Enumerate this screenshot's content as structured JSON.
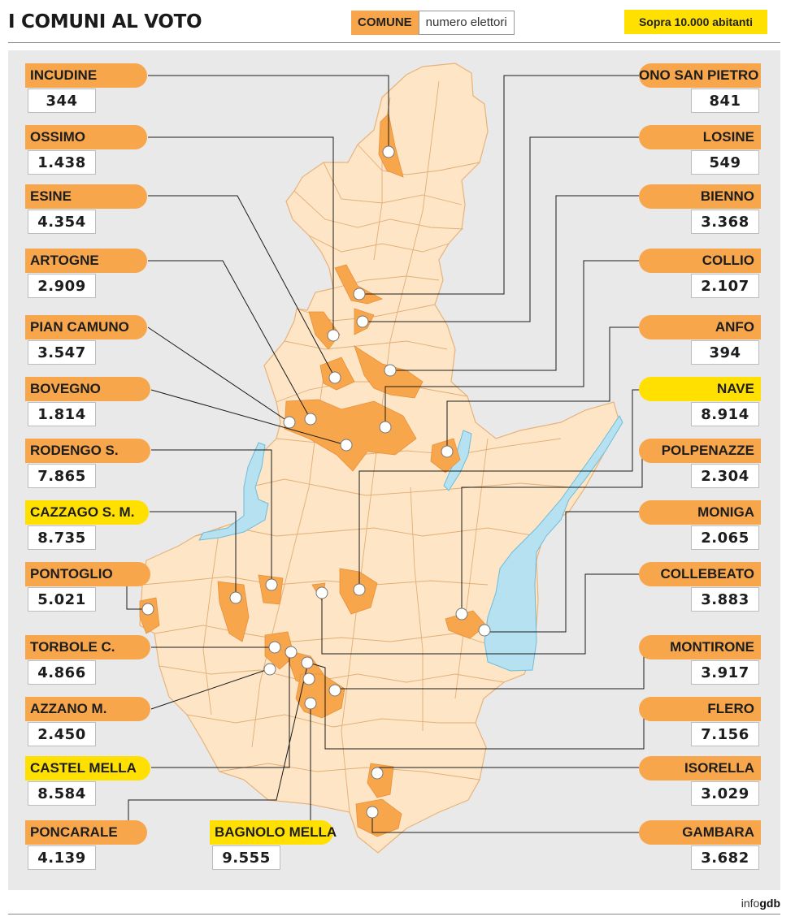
{
  "title": "I COMUNI AL VOTO",
  "legend": {
    "comune": "COMUNE",
    "elettori": "numero elettori",
    "sopra": "Sopra 10.000 abitanti"
  },
  "credit": {
    "pre": "info",
    "brand": "gdb"
  },
  "colors": {
    "orange": "#f8a64b",
    "yellow": "#ffe000",
    "province": "#fde5c6",
    "lake": "#b5e1f1"
  },
  "left": [
    {
      "name": "INCUDINE",
      "value": "344",
      "hl": false
    },
    {
      "name": "OSSIMO",
      "value": "1.438",
      "hl": false
    },
    {
      "name": "ESINE",
      "value": "4.354",
      "hl": false
    },
    {
      "name": "ARTOGNE",
      "value": "2.909",
      "hl": false
    },
    {
      "name": "PIAN CAMUNO",
      "value": "3.547",
      "hl": false
    },
    {
      "name": "BOVEGNO",
      "value": "1.814",
      "hl": false
    },
    {
      "name": "RODENGO S.",
      "value": "7.865",
      "hl": false
    },
    {
      "name": "CAZZAGO S. M.",
      "value": "8.735",
      "hl": true
    },
    {
      "name": "PONTOGLIO",
      "value": "5.021",
      "hl": false
    },
    {
      "name": "TORBOLE C.",
      "value": "4.866",
      "hl": false
    },
    {
      "name": "AZZANO M.",
      "value": "2.450",
      "hl": false
    },
    {
      "name": "CASTEL MELLA",
      "value": "8.584",
      "hl": true
    },
    {
      "name": "PONCARALE",
      "value": "4.139",
      "hl": false
    }
  ],
  "bottom": {
    "name": "BAGNOLO MELLA",
    "value": "9.555",
    "hl": true
  },
  "right": [
    {
      "name": "ONO SAN PIETRO",
      "value": "841",
      "hl": false
    },
    {
      "name": "LOSINE",
      "value": "549",
      "hl": false
    },
    {
      "name": "BIENNO",
      "value": "3.368",
      "hl": false
    },
    {
      "name": "COLLIO",
      "value": "2.107",
      "hl": false
    },
    {
      "name": "ANFO",
      "value": "394",
      "hl": false
    },
    {
      "name": "NAVE",
      "value": "8.914",
      "hl": true
    },
    {
      "name": "POLPENAZZE",
      "value": "2.304",
      "hl": false
    },
    {
      "name": "MONIGA",
      "value": "2.065",
      "hl": false
    },
    {
      "name": "COLLEBEATO",
      "value": "3.883",
      "hl": false
    },
    {
      "name": "MONTIRONE",
      "value": "3.917",
      "hl": false
    },
    {
      "name": "FLERO",
      "value": "7.156",
      "hl": false
    },
    {
      "name": "ISORELLA",
      "value": "3.029",
      "hl": false
    },
    {
      "name": "GAMBARA",
      "value": "3.682",
      "hl": false
    }
  ]
}
